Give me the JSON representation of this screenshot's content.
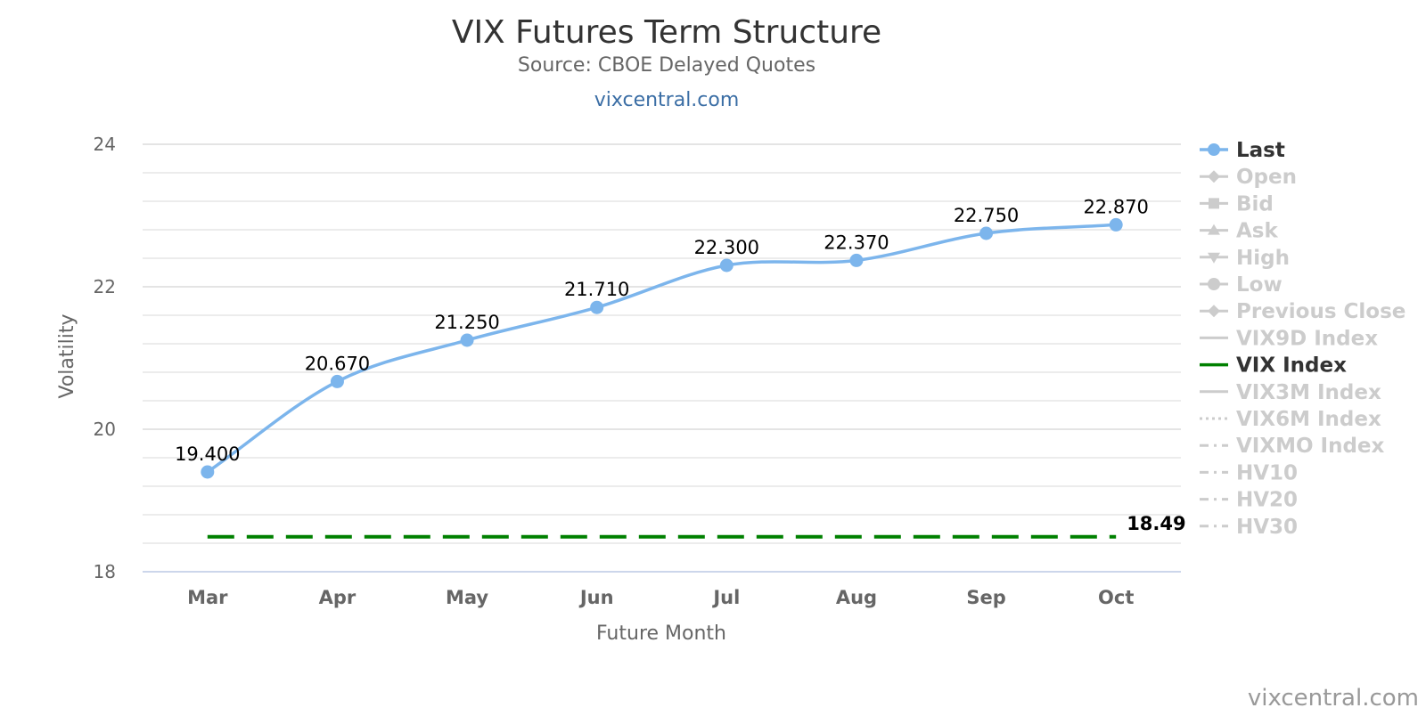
{
  "title": "VIX Futures Term Structure",
  "subtitle": "Source: CBOE Delayed Quotes",
  "link": "vixcentral.com",
  "credit": "vixcentral.com",
  "colors": {
    "last": "#7cb5ec",
    "vix_index": "#008000",
    "inactive": "#cccccc",
    "grid": "#e6e6e6",
    "title": "#333333",
    "axis_text": "#666666",
    "link": "#3b6ea5"
  },
  "chart_data": {
    "type": "line",
    "title": "VIX Futures Term Structure",
    "subtitle": "Source: CBOE Delayed Quotes",
    "xlabel": "Future Month",
    "ylabel": "Volatility",
    "categories": [
      "Mar",
      "Apr",
      "May",
      "Jun",
      "Jul",
      "Aug",
      "Sep",
      "Oct"
    ],
    "ylim": [
      18,
      24
    ],
    "yticks": [
      "18",
      "20",
      "22",
      "24"
    ],
    "minor_gridlines": true,
    "legend_position": "right",
    "series": [
      {
        "name": "Last",
        "values": [
          19.4,
          20.67,
          21.25,
          21.71,
          22.3,
          22.37,
          22.75,
          22.87
        ],
        "data_labels": [
          "19.400",
          "20.670",
          "21.250",
          "21.710",
          "22.300",
          "22.370",
          "22.750",
          "22.870"
        ],
        "style": "smooth-line-with-markers",
        "color": "#7cb5ec"
      },
      {
        "name": "VIX Index",
        "values": [
          18.49,
          18.49,
          18.49,
          18.49,
          18.49,
          18.49,
          18.49,
          18.49
        ],
        "end_label": "18.49",
        "style": "dashed",
        "color": "#008000"
      }
    ],
    "legend": [
      {
        "label": "Last",
        "symbol": "circle-line",
        "active": true
      },
      {
        "label": "Open",
        "symbol": "diamond-line",
        "active": false
      },
      {
        "label": "Bid",
        "symbol": "square-line",
        "active": false
      },
      {
        "label": "Ask",
        "symbol": "triangle-line",
        "active": false
      },
      {
        "label": "High",
        "symbol": "triangle-down-line",
        "active": false
      },
      {
        "label": "Low",
        "symbol": "circle-line",
        "active": false
      },
      {
        "label": "Previous Close",
        "symbol": "diamond-line",
        "active": false
      },
      {
        "label": "VIX9D Index",
        "symbol": "solid-line",
        "active": false
      },
      {
        "label": "VIX Index",
        "symbol": "solid-line",
        "active": true
      },
      {
        "label": "VIX3M Index",
        "symbol": "solid-line",
        "active": false
      },
      {
        "label": "VIX6M Index",
        "symbol": "dotted-line",
        "active": false
      },
      {
        "label": "VIXMO Index",
        "symbol": "dashdot-line",
        "active": false
      },
      {
        "label": "HV10",
        "symbol": "dashdot-line",
        "active": false
      },
      {
        "label": "HV20",
        "symbol": "dashdot-line",
        "active": false
      },
      {
        "label": "HV30",
        "symbol": "dashdot-line",
        "active": false
      }
    ]
  }
}
